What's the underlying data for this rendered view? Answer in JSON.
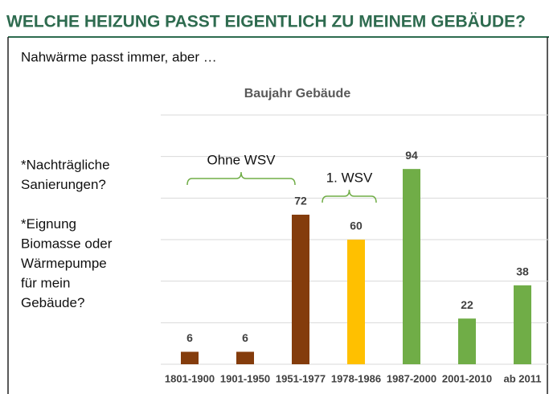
{
  "header": {
    "title": "WELCHE HEIZUNG PASST EIGENTLICH ZU MEINEM GEBÄUDE?",
    "subtitle": "Nahwärme passt immer, aber …"
  },
  "notes": [
    [
      "*Nachträgliche",
      "Sanierungen?"
    ],
    [
      "*Eignung",
      "Biomasse oder",
      "Wärmepumpe",
      "für mein",
      "Gebäude?"
    ]
  ],
  "chart_data": {
    "type": "bar",
    "title": "Baujahr Gebäude",
    "categories": [
      "1801-1900",
      "1901-1950",
      "1951-1977",
      "1978-1986",
      "1987-2000",
      "2001-2010",
      "ab 2011"
    ],
    "values": [
      6,
      6,
      72,
      60,
      94,
      22,
      38
    ],
    "colors": [
      "#843c0c",
      "#843c0c",
      "#843c0c",
      "#ffc000",
      "#70ad47",
      "#70ad47",
      "#70ad47"
    ],
    "ylim": [
      0,
      120
    ],
    "yticks": [
      0,
      20,
      40,
      60,
      80,
      100,
      120
    ],
    "grid": true,
    "annotations": [
      {
        "text": "Ohne WSV",
        "from": 0,
        "to": 2
      },
      {
        "text": "1. WSV",
        "from": 3,
        "to": 3
      }
    ]
  }
}
